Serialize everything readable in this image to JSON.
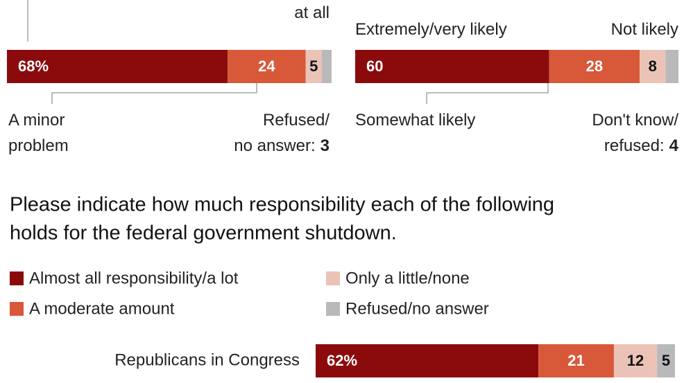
{
  "chart_data": [
    {
      "type": "bar",
      "orientation": "horizontal",
      "stacked": true,
      "xlim": [
        0,
        100
      ],
      "series": [
        {
          "color": "#8b0b0c",
          "values": [
            68
          ],
          "value_labels": [
            "68%"
          ]
        },
        {
          "color": "#d8583a",
          "values": [
            24
          ]
        },
        {
          "color": "#ebc3b6",
          "values": [
            5
          ]
        },
        {
          "color": "#b9b9bb",
          "values": [
            3
          ]
        }
      ],
      "annotations": [
        {
          "lines": [
            "at all"
          ]
        },
        {
          "lines": [
            "A minor",
            "problem"
          ]
        },
        {
          "lines": [
            "Refused/",
            "no answer:"
          ]
        }
      ]
    },
    {
      "type": "bar",
      "orientation": "horizontal",
      "stacked": true,
      "xlim": [
        0,
        100
      ],
      "series": [
        {
          "color": "#8b0b0c",
          "values": [
            60
          ]
        },
        {
          "color": "#d8583a",
          "values": [
            28
          ]
        },
        {
          "color": "#ebc3b6",
          "values": [
            8
          ]
        },
        {
          "color": "#b9b9bb",
          "values": [
            4
          ]
        }
      ],
      "annotations": [
        {
          "lines": [
            "Extremely/very likely"
          ]
        },
        {
          "lines": [
            "Not likely"
          ]
        },
        {
          "lines": [
            "Somewhat likely"
          ]
        },
        {
          "lines": [
            "Don't know/",
            "refused:"
          ]
        }
      ]
    },
    {
      "type": "bar",
      "orientation": "horizontal",
      "stacked": true,
      "xlim": [
        0,
        100
      ],
      "title": [
        "Please indicate how much responsibility each of the following",
        "holds for the federal government shutdown."
      ],
      "legend": true,
      "categories": [
        "Republicans in Congress"
      ],
      "series": [
        {
          "name": "Almost all responsibility/a lot",
          "color": "#8b0b0c",
          "values": [
            62
          ],
          "value_labels": [
            "62%"
          ]
        },
        {
          "name": "A moderate amount",
          "color": "#d8583a",
          "values": [
            21
          ]
        },
        {
          "name": "Only a little/none",
          "color": "#ebc3b6",
          "values": [
            12
          ]
        },
        {
          "name": "Refused/no answer",
          "color": "#b9b9bb",
          "values": [
            5
          ]
        }
      ]
    }
  ]
}
